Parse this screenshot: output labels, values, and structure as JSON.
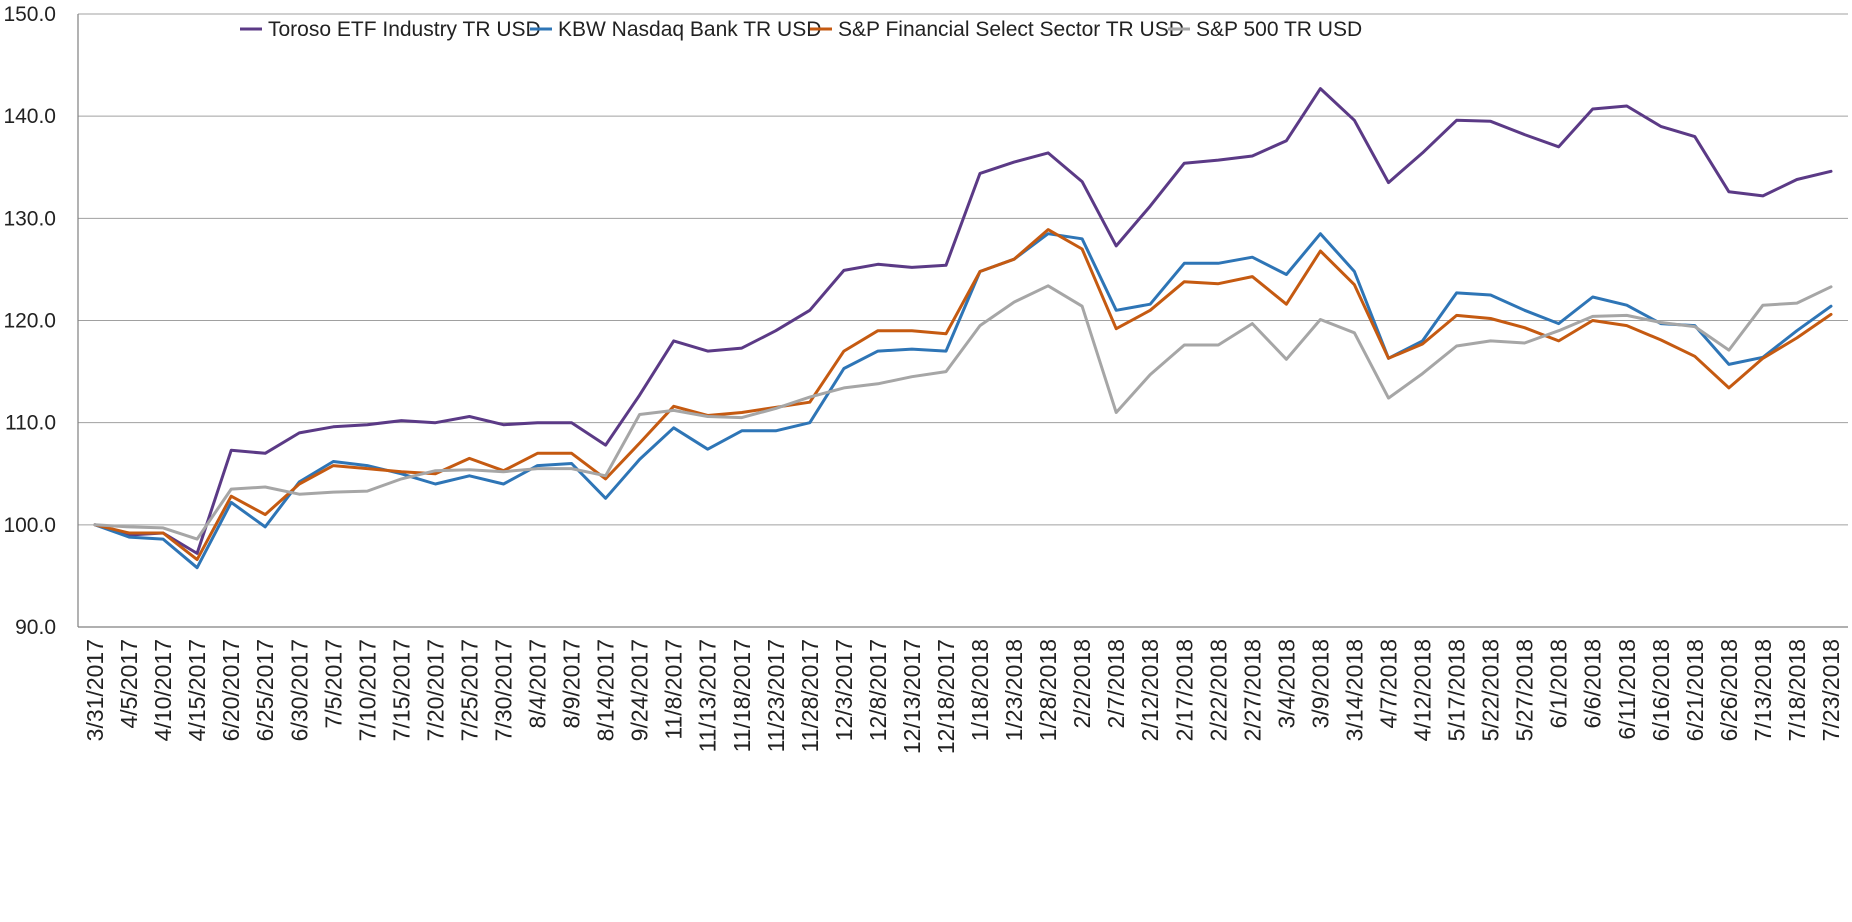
{
  "chart_data": {
    "type": "line",
    "title": "",
    "xlabel": "",
    "ylabel": "",
    "ylim": [
      90,
      150
    ],
    "yticks": [
      90,
      100,
      110,
      120,
      130,
      140,
      150
    ],
    "ytick_labels": [
      "90.0",
      "100.0",
      "110.0",
      "120.0",
      "130.0",
      "140.0",
      "150.0"
    ],
    "grid": true,
    "legend_position": "top-center",
    "x_labels": [
      "3/31/2017",
      "4/5/2017",
      "4/10/2017",
      "4/15/2017",
      "6/20/2017",
      "6/25/2017",
      "6/30/2017",
      "7/5/2017",
      "7/10/2017",
      "7/15/2017",
      "7/20/2017",
      "7/25/2017",
      "7/30/2017",
      "8/4/2017",
      "8/9/2017",
      "8/14/2017",
      "9/24/2017",
      "11/8/2017",
      "11/13/2017",
      "11/18/2017",
      "11/23/2017",
      "11/28/2017",
      "12/3/2017",
      "12/8/2017",
      "12/13/2017",
      "12/18/2017",
      "1/18/2018",
      "1/23/2018",
      "1/28/2018",
      "2/2/2018",
      "2/7/2018",
      "2/12/2018",
      "2/17/2018",
      "2/22/2018",
      "2/27/2018",
      "3/4/2018",
      "3/9/2018",
      "3/14/2018",
      "4/7/2018",
      "4/12/2018",
      "5/17/2018",
      "5/22/2018",
      "5/27/2018",
      "6/1/2018",
      "6/6/2018",
      "6/11/2018",
      "6/16/2018",
      "6/21/2018",
      "6/26/2018",
      "7/13/2018",
      "7/18/2018",
      "7/23/2018"
    ],
    "series": [
      {
        "name": "Toroso ETF Industry TR USD",
        "color": "#5b3a86",
        "values": [
          100.0,
          99.0,
          99.2,
          97.2,
          107.3,
          107.0,
          109.0,
          109.6,
          109.8,
          110.2,
          110.0,
          110.6,
          109.8,
          110.0,
          110.0,
          107.8,
          112.7,
          118.0,
          117.0,
          117.3,
          119.0,
          121.0,
          124.9,
          125.5,
          125.2,
          125.4,
          134.4,
          135.5,
          136.4,
          133.6,
          127.3,
          131.2,
          135.4,
          135.7,
          136.1,
          137.6,
          142.7,
          139.6,
          133.5,
          136.4,
          139.6,
          139.5,
          138.2,
          137.0,
          140.7,
          141.0,
          139.0,
          138.0,
          132.6,
          132.2,
          133.8,
          134.6
        ]
      },
      {
        "name": "KBW Nasdaq Bank TR USD",
        "color": "#2e75b6",
        "values": [
          100.0,
          98.8,
          98.6,
          95.8,
          102.2,
          99.8,
          104.2,
          106.2,
          105.8,
          105.0,
          104.0,
          104.8,
          104.0,
          105.8,
          106.0,
          102.6,
          106.4,
          109.5,
          107.4,
          109.2,
          109.2,
          110.0,
          115.3,
          117.0,
          117.2,
          117.0,
          124.8,
          126.0,
          128.5,
          128.0,
          121.0,
          121.6,
          125.6,
          125.6,
          126.2,
          124.5,
          128.5,
          124.8,
          116.3,
          118.0,
          122.7,
          122.5,
          121.0,
          119.7,
          122.3,
          121.5,
          119.7,
          119.5,
          115.7,
          116.4,
          119.0,
          121.4
        ]
      },
      {
        "name": "S&P Financial Select Sector TR USD",
        "color": "#c55a11",
        "values": [
          100.0,
          99.2,
          99.2,
          96.6,
          102.8,
          101.0,
          104.0,
          105.8,
          105.5,
          105.2,
          105.0,
          106.5,
          105.3,
          107.0,
          107.0,
          104.5,
          108.0,
          111.6,
          110.7,
          111.0,
          111.5,
          112.0,
          117.0,
          119.0,
          119.0,
          118.7,
          124.8,
          126.0,
          128.9,
          127.0,
          119.2,
          121.0,
          123.8,
          123.6,
          124.3,
          121.6,
          126.8,
          123.5,
          116.3,
          117.7,
          120.5,
          120.2,
          119.3,
          118.0,
          120.0,
          119.5,
          118.1,
          116.5,
          113.4,
          116.3,
          118.3,
          120.6
        ]
      },
      {
        "name": "S&P 500 TR USD",
        "color": "#a6a6a6",
        "values": [
          100.0,
          99.8,
          99.7,
          98.6,
          103.5,
          103.7,
          103.0,
          103.2,
          103.3,
          104.5,
          105.3,
          105.4,
          105.2,
          105.5,
          105.5,
          104.8,
          110.8,
          111.2,
          110.6,
          110.5,
          111.4,
          112.5,
          113.4,
          113.8,
          114.5,
          115.0,
          119.5,
          121.8,
          123.4,
          121.4,
          111.0,
          114.7,
          117.6,
          117.6,
          119.7,
          116.2,
          120.1,
          118.8,
          112.4,
          114.8,
          117.5,
          118.0,
          117.8,
          119.0,
          120.4,
          120.5,
          119.8,
          119.4,
          117.1,
          121.5,
          121.7,
          123.3
        ]
      }
    ]
  }
}
